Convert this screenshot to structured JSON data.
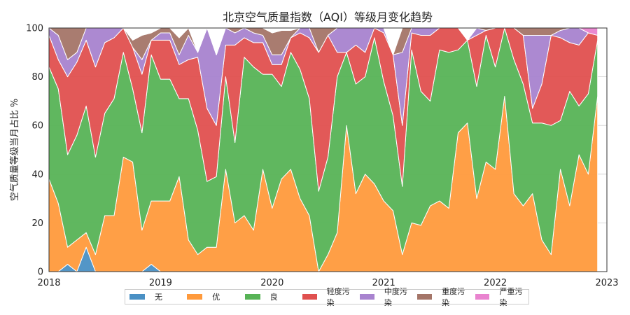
{
  "chart_data": {
    "type": "area",
    "stacked": true,
    "title": "北京空气质量指数（AQI）等级月变化趋势",
    "ylabel": "空气质量等级当月占比 %",
    "xlabel": "",
    "xlim": [
      "2018-01",
      "2023-01"
    ],
    "ylim": [
      0,
      100
    ],
    "yticks": [
      "0",
      "20",
      "40",
      "60",
      "80",
      "100"
    ],
    "xticks": [
      "2018",
      "2019",
      "2020",
      "2021",
      "2022",
      "2023"
    ],
    "grid": true,
    "legend_position": "bottom",
    "x": [
      "2018-01",
      "2018-02",
      "2018-03",
      "2018-04",
      "2018-05",
      "2018-06",
      "2018-07",
      "2018-08",
      "2018-09",
      "2018-10",
      "2018-11",
      "2018-12",
      "2019-01",
      "2019-02",
      "2019-03",
      "2019-04",
      "2019-05",
      "2019-06",
      "2019-07",
      "2019-08",
      "2019-09",
      "2019-10",
      "2019-11",
      "2019-12",
      "2020-01",
      "2020-02",
      "2020-03",
      "2020-04",
      "2020-05",
      "2020-06",
      "2020-07",
      "2020-08",
      "2020-09",
      "2020-10",
      "2020-11",
      "2020-12",
      "2021-01",
      "2021-02",
      "2021-03",
      "2021-04",
      "2021-05",
      "2021-06",
      "2021-07",
      "2021-08",
      "2021-09",
      "2021-10",
      "2021-11",
      "2021-12",
      "2022-01",
      "2022-02",
      "2022-03",
      "2022-04",
      "2022-05",
      "2022-06",
      "2022-07",
      "2022-08",
      "2022-09",
      "2022-10",
      "2022-11",
      "2022-12"
    ],
    "series": [
      {
        "name": "无",
        "color": "#4a90c4",
        "values": [
          0,
          0,
          3,
          0,
          10,
          0,
          0,
          0,
          0,
          0,
          0,
          3,
          0,
          0,
          0,
          0,
          0,
          0,
          0,
          0,
          0,
          0,
          0,
          0,
          0,
          0,
          0,
          0,
          0,
          0,
          0,
          0,
          0,
          0,
          0,
          0,
          0,
          0,
          0,
          0,
          0,
          0,
          0,
          0,
          0,
          0,
          0,
          0,
          0,
          0,
          0,
          0,
          0,
          0,
          0,
          0,
          0,
          0,
          0,
          0
        ]
      },
      {
        "name": "优",
        "color": "#ff9a3c",
        "values": [
          38,
          28,
          7,
          13,
          6,
          7,
          23,
          23,
          47,
          45,
          17,
          26,
          29,
          29,
          39,
          13,
          7,
          10,
          10,
          42,
          20,
          23,
          17,
          42,
          26,
          38,
          42,
          30,
          23,
          0,
          7,
          16,
          60,
          32,
          40,
          36,
          29,
          25,
          7,
          20,
          19,
          27,
          29,
          26,
          57,
          61,
          30,
          45,
          42,
          72,
          32,
          27,
          32,
          13,
          7,
          42,
          27,
          48,
          40,
          72
        ]
      },
      {
        "name": "良",
        "color": "#57b356",
        "values": [
          46,
          47,
          38,
          43,
          52,
          40,
          42,
          48,
          43,
          30,
          40,
          60,
          50,
          50,
          32,
          58,
          51,
          27,
          29,
          38,
          33,
          65,
          67,
          39,
          55,
          38,
          48,
          53,
          48,
          33,
          40,
          64,
          30,
          45,
          40,
          60,
          49,
          39,
          28,
          71,
          55,
          43,
          62,
          64,
          34,
          34,
          46,
          52,
          42,
          28,
          55,
          50,
          29,
          48,
          53,
          20,
          47,
          20,
          33,
          23
        ]
      },
      {
        "name": "轻度污染",
        "color": "#e0504f",
        "values": [
          13,
          12,
          32,
          30,
          27,
          37,
          29,
          25,
          10,
          17,
          24,
          6,
          16,
          16,
          14,
          16,
          30,
          30,
          21,
          13,
          40,
          8,
          10,
          13,
          4,
          9,
          6,
          15,
          25,
          57,
          50,
          10,
          0,
          16,
          10,
          4,
          20,
          25,
          25,
          7,
          23,
          27,
          9,
          10,
          9,
          0,
          21,
          2,
          16,
          0,
          13,
          20,
          6,
          16,
          37,
          34,
          20,
          25,
          25,
          2
        ]
      },
      {
        "name": "中度污染",
        "color": "#a883cf",
        "values": [
          3,
          10,
          7,
          4,
          5,
          16,
          6,
          4,
          0,
          0,
          6,
          0,
          3,
          3,
          4,
          10,
          2,
          33,
          29,
          7,
          5,
          4,
          4,
          3,
          4,
          4,
          0,
          2,
          4,
          0,
          0,
          10,
          10,
          7,
          10,
          0,
          2,
          0,
          30,
          2,
          3,
          3,
          0,
          0,
          0,
          0,
          3,
          0,
          0,
          0,
          0,
          0,
          30,
          20,
          0,
          3,
          6,
          7,
          0,
          0
        ]
      },
      {
        "name": "重度污染",
        "color": "#a47568",
        "values": [
          0,
          3,
          13,
          10,
          0,
          0,
          0,
          0,
          0,
          3,
          10,
          3,
          2,
          2,
          7,
          3,
          0,
          0,
          0,
          0,
          2,
          0,
          2,
          3,
          9,
          10,
          3,
          0,
          0,
          10,
          3,
          0,
          0,
          0,
          0,
          0,
          0,
          0,
          10,
          0,
          0,
          0,
          0,
          0,
          0,
          0,
          0,
          1,
          0,
          0,
          0,
          3,
          3,
          3,
          3,
          1,
          0,
          0,
          0,
          0
        ]
      },
      {
        "name": "严重污染",
        "color": "#e983cf",
        "values": [
          0,
          0,
          0,
          0,
          0,
          0,
          0,
          0,
          0,
          0,
          0,
          0,
          0,
          0,
          0,
          0,
          0,
          0,
          0,
          0,
          0,
          0,
          0,
          0,
          0,
          0,
          0,
          0,
          0,
          0,
          0,
          0,
          0,
          0,
          0,
          0,
          0,
          0,
          0,
          0,
          0,
          0,
          0,
          0,
          0,
          0,
          0,
          0,
          0,
          0,
          0,
          0,
          0,
          0,
          0,
          0,
          0,
          0,
          2,
          3
        ]
      }
    ]
  }
}
